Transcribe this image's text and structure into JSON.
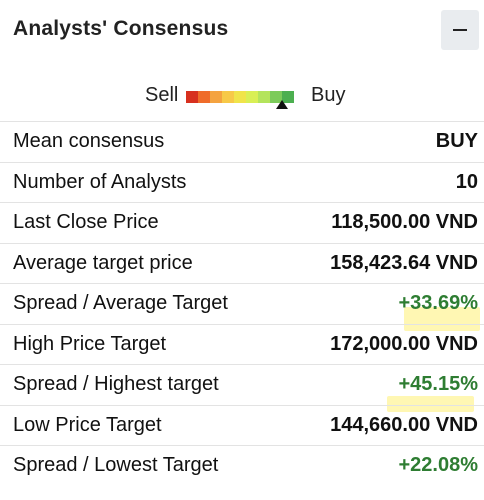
{
  "header": {
    "title": "Analysts' Consensus",
    "collapse_icon": "minus-icon"
  },
  "gauge": {
    "sell_label": "Sell",
    "buy_label": "Buy",
    "segments": [
      "#d7301f",
      "#ef6c2a",
      "#f4a340",
      "#f7c948",
      "#f0e44a",
      "#d9ef55",
      "#b4e45c",
      "#7ccb5a",
      "#4caf50"
    ],
    "pointer_segment": 8
  },
  "colors": {
    "positive": "#2e7d32",
    "highlight": "#fff7b3"
  },
  "rows": [
    {
      "label": "Mean consensus",
      "value": "BUY"
    },
    {
      "label": "Number of Analysts",
      "value": "10"
    },
    {
      "label": "Last Close Price",
      "value": "118,500.00 VND"
    },
    {
      "label": "Average target price",
      "value": "158,423.64 VND"
    },
    {
      "label": "Spread / Average Target",
      "value": "+33.69%"
    },
    {
      "label": "High Price Target",
      "value": "172,000.00 VND"
    },
    {
      "label": "Spread / Highest target",
      "value": "+45.15%"
    },
    {
      "label": "Low Price Target",
      "value": "144,660.00 VND"
    },
    {
      "label": "Spread / Lowest Target",
      "value": "+22.08%"
    }
  ]
}
